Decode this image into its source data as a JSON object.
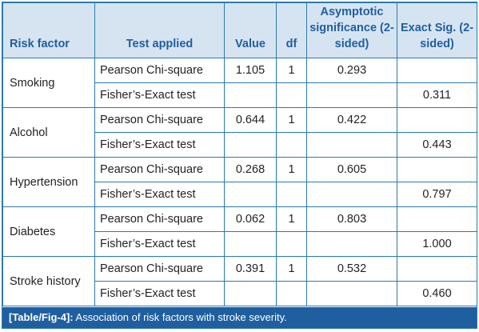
{
  "headers": {
    "risk_factor": "Risk factor",
    "test_applied": "Test applied",
    "value": "Value",
    "df": "df",
    "asymptotic": "Asymptotic significance (2-sided)",
    "exact": "Exact Sig. (2-sided)"
  },
  "rows": [
    {
      "risk_factor": "Smoking",
      "pearson": {
        "test": "Pearson Chi-square",
        "value": "1.105",
        "df": "1",
        "asym": "0.293"
      },
      "fisher": {
        "test": "Fisher’s-Exact test",
        "exact": "0.311"
      }
    },
    {
      "risk_factor": "Alcohol",
      "pearson": {
        "test": "Pearson Chi-square",
        "value": "0.644",
        "df": "1",
        "asym": "0.422"
      },
      "fisher": {
        "test": "Fisher’s-Exact test",
        "exact": "0.443"
      }
    },
    {
      "risk_factor": "Hypertension",
      "pearson": {
        "test": "Pearson Chi-square",
        "value": "0.268",
        "df": "1",
        "asym": "0.605"
      },
      "fisher": {
        "test": "Fisher’s-Exact test",
        "exact": "0.797"
      }
    },
    {
      "risk_factor": "Diabetes",
      "pearson": {
        "test": "Pearson Chi-square",
        "value": "0.062",
        "df": "1",
        "asym": "0.803"
      },
      "fisher": {
        "test": "Fisher’s-Exact test",
        "exact": "1.000"
      }
    },
    {
      "risk_factor": "Stroke history",
      "pearson": {
        "test": "Pearson Chi-square",
        "value": "0.391",
        "df": "1",
        "asym": "0.532"
      },
      "fisher": {
        "test": "Fisher’s-Exact test",
        "exact": "0.460"
      }
    }
  ],
  "caption": {
    "label": "[Table/Fig-4]:",
    "text": "Association of risk factors with stroke severity."
  },
  "colors": {
    "header_bg": "#d6e4f2",
    "header_text": "#1f5f9f",
    "border": "#2a7ab0",
    "caption_bg": "#1f5f9f"
  }
}
